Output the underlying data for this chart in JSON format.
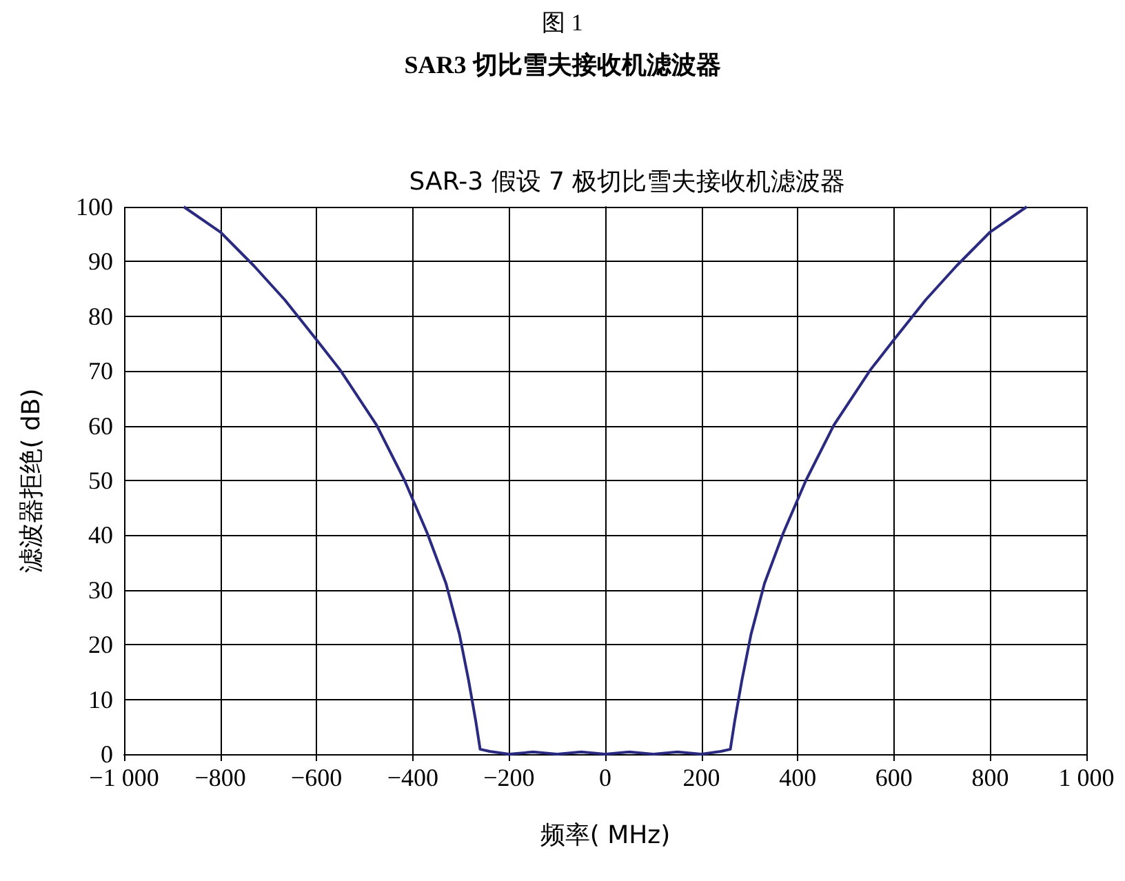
{
  "chart_data": {
    "type": "line",
    "title": "SAR-3 假设 7 极切比雪夫接收机滤波器",
    "subtitle": "图 1\nSAR3 切比雪夫接收机滤波器",
    "xlabel": "频率( MHz)",
    "ylabel": "滤波器拒绝( dB)",
    "x": [
      -876,
      -800,
      -730,
      -666,
      -599,
      -551,
      -475,
      -417,
      -370,
      -331,
      -303,
      -284,
      -269,
      -260,
      -240,
      -200,
      -150,
      -100,
      -50,
      0,
      50,
      100,
      150,
      200,
      240,
      260,
      269,
      284,
      303,
      331,
      370,
      417,
      475,
      551,
      599,
      666,
      730,
      800,
      876
    ],
    "series": [
      {
        "color": "#2a2a80",
        "values": [
          100,
          95.4,
          89.2,
          83,
          75.6,
          70.2,
          60.1,
          50,
          40.4,
          31.2,
          21.9,
          13.5,
          6,
          0.9,
          0.5,
          0,
          0.4,
          0,
          0.4,
          0,
          0.4,
          0,
          0.4,
          0,
          0.5,
          0.9,
          6,
          13.5,
          21.9,
          31.2,
          40.4,
          50,
          60.1,
          70.2,
          75.6,
          83,
          89.2,
          95.4,
          100
        ]
      }
    ],
    "xlim": [
      -1000,
      1000
    ],
    "xticks": [
      {
        "value": -1000,
        "label": "−1 000"
      },
      {
        "value": -800,
        "label": "−800"
      },
      {
        "value": -600,
        "label": "−600"
      },
      {
        "value": -400,
        "label": "−400"
      },
      {
        "value": -200,
        "label": "−200"
      },
      0,
      200,
      400,
      600,
      800,
      {
        "value": 1000,
        "label": "1 000"
      }
    ],
    "ylim": [
      0,
      100
    ],
    "yticks": [
      0,
      10,
      20,
      30,
      40,
      50,
      60,
      70,
      80,
      90,
      100
    ],
    "grid": true,
    "marker": "none",
    "line_style": "solid"
  }
}
